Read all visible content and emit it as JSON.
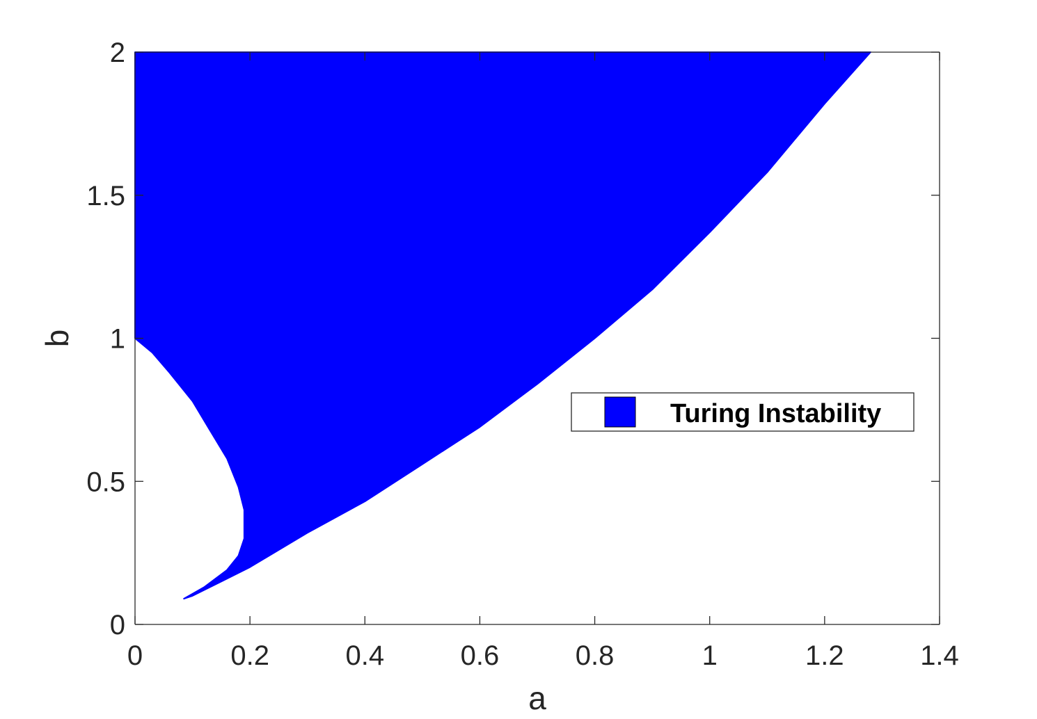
{
  "chart_data": {
    "type": "area",
    "title": "",
    "xlabel": "a",
    "ylabel": "b",
    "xlim": [
      0,
      1.4
    ],
    "ylim": [
      0,
      2
    ],
    "x_ticks": [
      "0",
      "0.2",
      "0.4",
      "0.6",
      "0.8",
      "1",
      "1.2",
      "1.4"
    ],
    "y_ticks": [
      "0",
      "0.5",
      "1",
      "1.5",
      "2"
    ],
    "grid": false,
    "legend_position": "center-right",
    "series": [
      {
        "name": "Turing Instability",
        "color": "#0000ff",
        "upper_boundary": [
          {
            "x": 0.085,
            "y": 0.09
          },
          {
            "x": 0.1,
            "y": 0.1
          },
          {
            "x": 0.15,
            "y": 0.15
          },
          {
            "x": 0.2,
            "y": 0.2
          },
          {
            "x": 0.3,
            "y": 0.32
          },
          {
            "x": 0.4,
            "y": 0.43
          },
          {
            "x": 0.5,
            "y": 0.56
          },
          {
            "x": 0.6,
            "y": 0.69
          },
          {
            "x": 0.7,
            "y": 0.84
          },
          {
            "x": 0.8,
            "y": 1.0
          },
          {
            "x": 0.9,
            "y": 1.17
          },
          {
            "x": 1.0,
            "y": 1.37
          },
          {
            "x": 1.1,
            "y": 1.58
          },
          {
            "x": 1.2,
            "y": 1.82
          },
          {
            "x": 1.28,
            "y": 2.0
          }
        ],
        "left_boundary": [
          {
            "x": 0.085,
            "y": 0.09
          },
          {
            "x": 0.12,
            "y": 0.13
          },
          {
            "x": 0.16,
            "y": 0.19
          },
          {
            "x": 0.18,
            "y": 0.24
          },
          {
            "x": 0.19,
            "y": 0.3
          },
          {
            "x": 0.19,
            "y": 0.4
          },
          {
            "x": 0.18,
            "y": 0.48
          },
          {
            "x": 0.16,
            "y": 0.58
          },
          {
            "x": 0.13,
            "y": 0.68
          },
          {
            "x": 0.1,
            "y": 0.78
          },
          {
            "x": 0.06,
            "y": 0.88
          },
          {
            "x": 0.03,
            "y": 0.95
          },
          {
            "x": 0.0,
            "y": 1.0
          }
        ]
      }
    ]
  }
}
